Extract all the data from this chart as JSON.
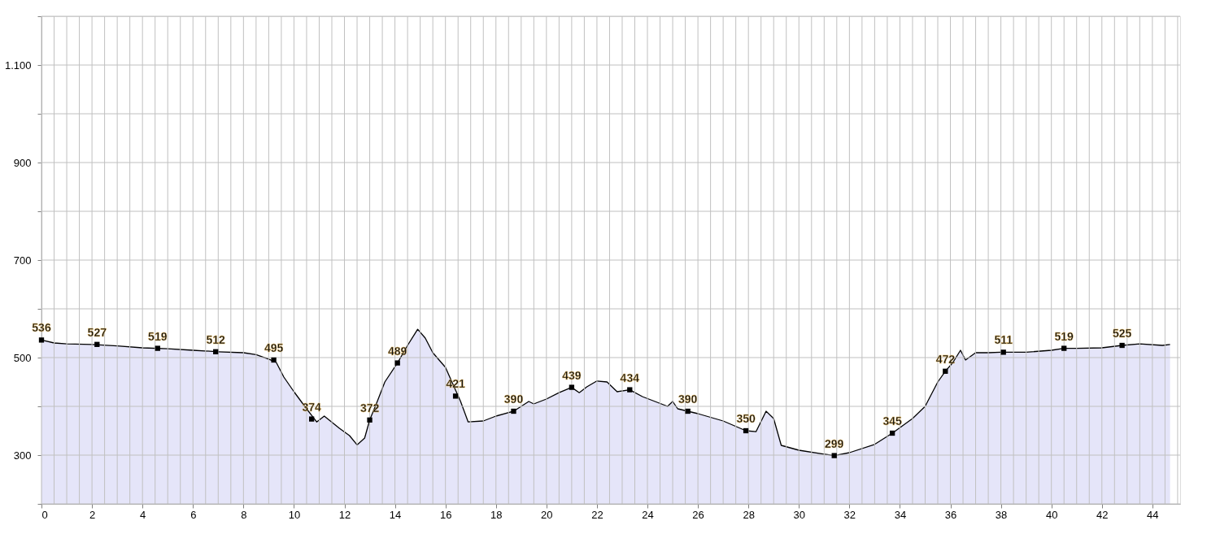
{
  "chart_data": {
    "type": "area",
    "x": [
      0,
      0.5,
      1,
      2,
      3,
      4,
      5,
      6,
      7,
      8,
      8.5,
      9,
      9.3,
      9.6,
      10,
      10.5,
      10.9,
      11.2,
      11.8,
      12.2,
      12.5,
      12.8,
      13,
      13.3,
      13.6,
      14.1,
      14.5,
      14.9,
      15.2,
      15.5,
      16,
      16.3,
      16.6,
      16.9,
      17.5,
      18,
      18.7,
      19.3,
      19.5,
      20,
      20.5,
      21,
      21.3,
      21.6,
      22,
      22.4,
      22.8,
      23.3,
      23.8,
      24.3,
      24.8,
      25,
      25.2,
      25.6,
      26,
      27,
      27.9,
      28.3,
      28.7,
      29,
      29.3,
      30,
      31,
      31.4,
      32,
      33,
      33.7,
      34.5,
      35,
      35.5,
      35.8,
      36.1,
      36.4,
      36.6,
      37,
      37.5,
      38,
      39,
      40,
      40.5,
      41,
      42,
      42.8,
      43.5,
      44.4,
      44.7
    ],
    "series": [
      {
        "color": "#e0e0f8",
        "values": [
          536,
          530,
          528,
          527,
          524,
          520,
          518,
          515,
          512,
          510,
          506,
          497,
          490,
          460,
          430,
          395,
          368,
          380,
          355,
          340,
          321,
          335,
          372,
          410,
          450,
          489,
          525,
          558,
          540,
          510,
          480,
          445,
          410,
          368,
          370,
          380,
          390,
          410,
          405,
          415,
          428,
          439,
          428,
          440,
          452,
          450,
          430,
          434,
          420,
          410,
          400,
          410,
          395,
          390,
          385,
          370,
          350,
          348,
          390,
          375,
          320,
          310,
          302,
          299,
          305,
          322,
          345,
          375,
          400,
          450,
          472,
          490,
          515,
          495,
          510,
          510,
          511,
          511,
          515,
          519,
          519,
          520,
          525,
          528,
          525,
          527
        ]
      }
    ],
    "xlim": [
      0,
      45.1
    ],
    "xticks": [
      0,
      {
        "value": 0.5,
        "label": null
      },
      {
        "value": 1,
        "label": null
      },
      {
        "value": 1.5,
        "label": null
      },
      2,
      {
        "value": 2.5,
        "label": null
      },
      {
        "value": 3,
        "label": null
      },
      {
        "value": 3.5,
        "label": null
      },
      4,
      {
        "value": 4.5,
        "label": null
      },
      {
        "value": 5,
        "label": null
      },
      {
        "value": 5.5,
        "label": null
      },
      6,
      {
        "value": 6.5,
        "label": null
      },
      {
        "value": 7,
        "label": null
      },
      {
        "value": 7.5,
        "label": null
      },
      8,
      {
        "value": 8.5,
        "label": null
      },
      {
        "value": 9,
        "label": null
      },
      {
        "value": 9.5,
        "label": null
      },
      10,
      {
        "value": 10.5,
        "label": null
      },
      {
        "value": 11,
        "label": null
      },
      {
        "value": 11.5,
        "label": null
      },
      12,
      {
        "value": 12.5,
        "label": null
      },
      {
        "value": 13,
        "label": null
      },
      {
        "value": 13.5,
        "label": null
      },
      14,
      {
        "value": 14.5,
        "label": null
      },
      {
        "value": 15,
        "label": null
      },
      {
        "value": 15.5,
        "label": null
      },
      16,
      {
        "value": 16.5,
        "label": null
      },
      {
        "value": 17,
        "label": null
      },
      {
        "value": 17.5,
        "label": null
      },
      18,
      {
        "value": 18.5,
        "label": null
      },
      {
        "value": 19,
        "label": null
      },
      {
        "value": 19.5,
        "label": null
      },
      20,
      {
        "value": 20.5,
        "label": null
      },
      {
        "value": 21,
        "label": null
      },
      {
        "value": 21.5,
        "label": null
      },
      22,
      {
        "value": 22.5,
        "label": null
      },
      {
        "value": 23,
        "label": null
      },
      {
        "value": 23.5,
        "label": null
      },
      24,
      {
        "value": 24.5,
        "label": null
      },
      {
        "value": 25,
        "label": null
      },
      {
        "value": 25.5,
        "label": null
      },
      26,
      {
        "value": 26.5,
        "label": null
      },
      {
        "value": 27,
        "label": null
      },
      {
        "value": 27.5,
        "label": null
      },
      28,
      {
        "value": 28.5,
        "label": null
      },
      {
        "value": 29,
        "label": null
      },
      {
        "value": 29.5,
        "label": null
      },
      30,
      {
        "value": 30.5,
        "label": null
      },
      {
        "value": 31,
        "label": null
      },
      {
        "value": 31.5,
        "label": null
      },
      32,
      {
        "value": 32.5,
        "label": null
      },
      {
        "value": 33,
        "label": null
      },
      {
        "value": 33.5,
        "label": null
      },
      34,
      {
        "value": 34.5,
        "label": null
      },
      {
        "value": 35,
        "label": null
      },
      {
        "value": 35.5,
        "label": null
      },
      36,
      {
        "value": 36.5,
        "label": null
      },
      {
        "value": 37,
        "label": null
      },
      {
        "value": 37.5,
        "label": null
      },
      38,
      {
        "value": 38.5,
        "label": null
      },
      {
        "value": 39,
        "label": null
      },
      {
        "value": 39.5,
        "label": null
      },
      40,
      {
        "value": 40.5,
        "label": null
      },
      {
        "value": 41,
        "label": null
      },
      {
        "value": 41.5,
        "label": null
      },
      42,
      {
        "value": 42.5,
        "label": null
      },
      {
        "value": 43,
        "label": null
      },
      {
        "value": 43.5,
        "label": null
      },
      44,
      {
        "value": 44.5,
        "label": null
      },
      {
        "value": 45,
        "label": null
      }
    ],
    "ylim": [
      200,
      1200
    ],
    "yticks": [
      {
        "value": 200,
        "label": null
      },
      300,
      {
        "value": 400,
        "label": null
      },
      500,
      {
        "value": 600,
        "label": null
      },
      700,
      {
        "value": 800,
        "label": null
      },
      900,
      {
        "value": 1000,
        "label": null
      },
      {
        "value": 1100,
        "label": "1.100"
      },
      {
        "value": 1200,
        "label": null
      }
    ],
    "grid": true,
    "annotations": [
      {
        "text": "536",
        "x": 0,
        "y": 536
      },
      {
        "text": "527",
        "x": 2.2,
        "y": 527
      },
      {
        "text": "519",
        "x": 4.6,
        "y": 519
      },
      {
        "text": "512",
        "x": 6.9,
        "y": 512
      },
      {
        "text": "495",
        "x": 9.2,
        "y": 495
      },
      {
        "text": "374",
        "x": 10.7,
        "y": 374
      },
      {
        "text": "372",
        "x": 13.0,
        "y": 372
      },
      {
        "text": "489",
        "x": 14.1,
        "y": 489
      },
      {
        "text": "421",
        "x": 16.4,
        "y": 421
      },
      {
        "text": "390",
        "x": 18.7,
        "y": 390
      },
      {
        "text": "439",
        "x": 21.0,
        "y": 439
      },
      {
        "text": "434",
        "x": 23.3,
        "y": 434
      },
      {
        "text": "390",
        "x": 25.6,
        "y": 390
      },
      {
        "text": "350",
        "x": 27.9,
        "y": 350
      },
      {
        "text": "299",
        "x": 31.4,
        "y": 299
      },
      {
        "text": "345",
        "x": 33.7,
        "y": 345
      },
      {
        "text": "472",
        "x": 35.8,
        "y": 472
      },
      {
        "text": "511",
        "x": 38.1,
        "y": 511
      },
      {
        "text": "519",
        "x": 40.5,
        "y": 519
      },
      {
        "text": "525",
        "x": 42.8,
        "y": 525
      }
    ]
  }
}
